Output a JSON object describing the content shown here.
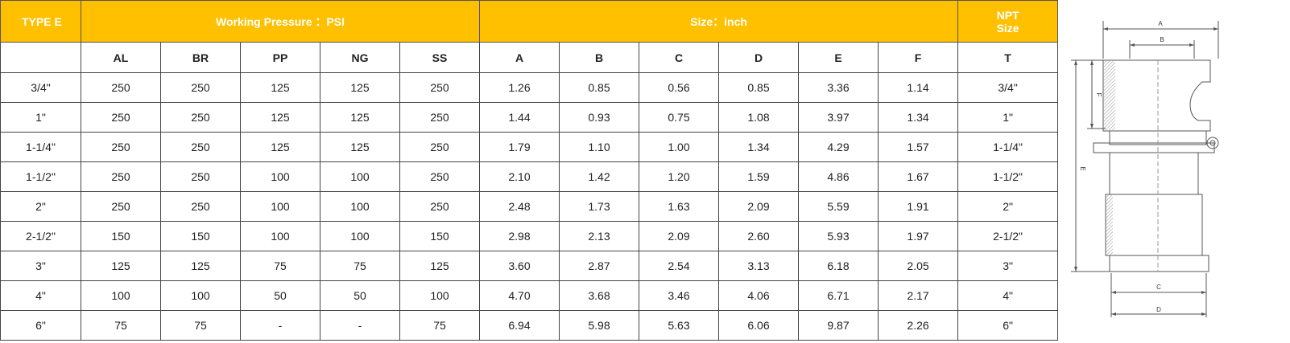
{
  "header": {
    "type_label": "TYPE E",
    "pressure_label": "Working Pressure ：PSI",
    "size_label": "Size：inch",
    "npt_label_line1": "NPT",
    "npt_label_line2": "Size"
  },
  "columns": [
    "",
    "AL",
    "BR",
    "PP",
    "NG",
    "SS",
    "A",
    "B",
    "C",
    "D",
    "E",
    "F",
    "T"
  ],
  "rows": [
    [
      "3/4\"",
      "250",
      "250",
      "125",
      "125",
      "250",
      "1.26",
      "0.85",
      "0.56",
      "0.85",
      "3.36",
      "1.14",
      "3/4\""
    ],
    [
      "1\"",
      "250",
      "250",
      "125",
      "125",
      "250",
      "1.44",
      "0.93",
      "0.75",
      "1.08",
      "3.97",
      "1.34",
      "1\""
    ],
    [
      "1-1/4\"",
      "250",
      "250",
      "125",
      "125",
      "250",
      "1.79",
      "1.10",
      "1.00",
      "1.34",
      "4.29",
      "1.57",
      "1-1/4\""
    ],
    [
      "1-1/2\"",
      "250",
      "250",
      "100",
      "100",
      "250",
      "2.10",
      "1.42",
      "1.20",
      "1.59",
      "4.86",
      "1.67",
      "1-1/2\""
    ],
    [
      "2\"",
      "250",
      "250",
      "100",
      "100",
      "250",
      "2.48",
      "1.73",
      "1.63",
      "2.09",
      "5.59",
      "1.91",
      "2\""
    ],
    [
      "2-1/2\"",
      "150",
      "150",
      "100",
      "100",
      "150",
      "2.98",
      "2.13",
      "2.09",
      "2.60",
      "5.93",
      "1.97",
      "2-1/2\""
    ],
    [
      "3\"",
      "125",
      "125",
      "75",
      "75",
      "125",
      "3.60",
      "2.87",
      "2.54",
      "3.13",
      "6.18",
      "2.05",
      "3\""
    ],
    [
      "4\"",
      "100",
      "100",
      "50",
      "50",
      "100",
      "4.70",
      "3.68",
      "3.46",
      "4.06",
      "6.71",
      "2.17",
      "4\""
    ],
    [
      "6\"",
      "75",
      "75",
      "-",
      "-",
      "75",
      "6.94",
      "5.98",
      "5.63",
      "6.06",
      "9.87",
      "2.26",
      "6\""
    ]
  ],
  "drawing": {
    "dimension_labels": {
      "a": "A",
      "b": "B",
      "c": "C",
      "d": "D",
      "e": "E",
      "f": "F"
    },
    "accent_color": "#FFC000"
  }
}
